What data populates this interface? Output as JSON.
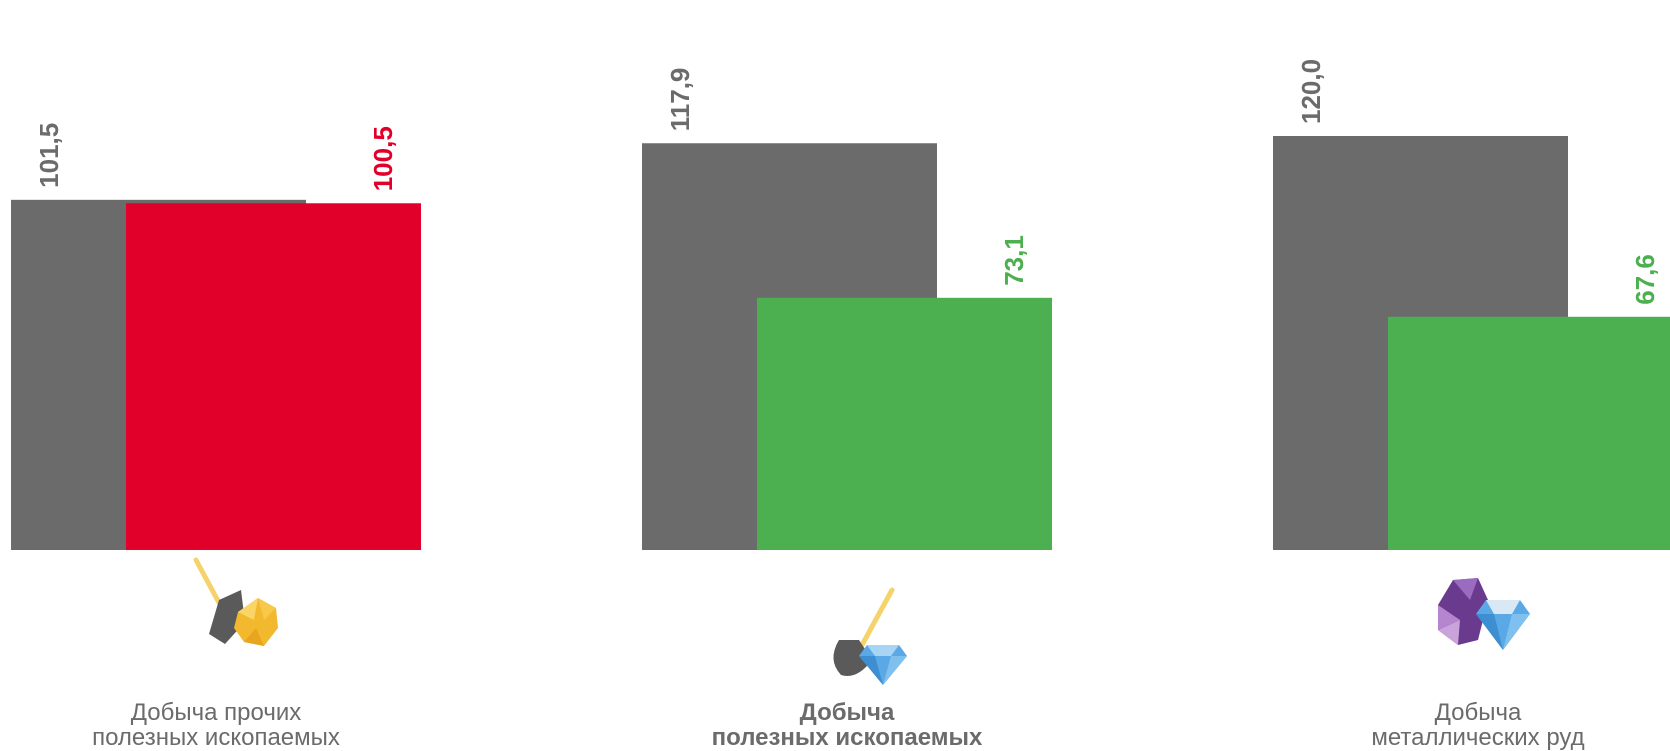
{
  "chart_data": {
    "type": "bar",
    "categories": [
      {
        "line1": "Добыча прочих",
        "line2": "полезных ископаемых",
        "bold": false,
        "icon": "shovel-gold-ore-icon"
      },
      {
        "line1": "Добыча",
        "line2": "полезных ископаемых",
        "bold": true,
        "icon": "shovel-diamond-icon"
      },
      {
        "line1": "Добыча",
        "line2": "металлических руд",
        "bold": false,
        "icon": "gems-diamond-icon"
      }
    ],
    "series": [
      {
        "values": [
          101.5,
          117.9,
          120.0
        ],
        "labels": [
          "101,5",
          "117,9",
          "120,0"
        ],
        "color": "#6b6b6b"
      },
      {
        "values": [
          100.5,
          73.1,
          67.6
        ],
        "labels": [
          "100,5",
          "73,1",
          "67,6"
        ],
        "colors": [
          "#e1002a",
          "#4caf50",
          "#4caf50"
        ]
      }
    ],
    "ylim": [
      0,
      130
    ],
    "grid": false,
    "legend": "none"
  },
  "colors": {
    "base": "#6b6b6b",
    "decline": "#e1002a",
    "growth": "#4caf50",
    "label_gray": "#6b6b6b"
  }
}
